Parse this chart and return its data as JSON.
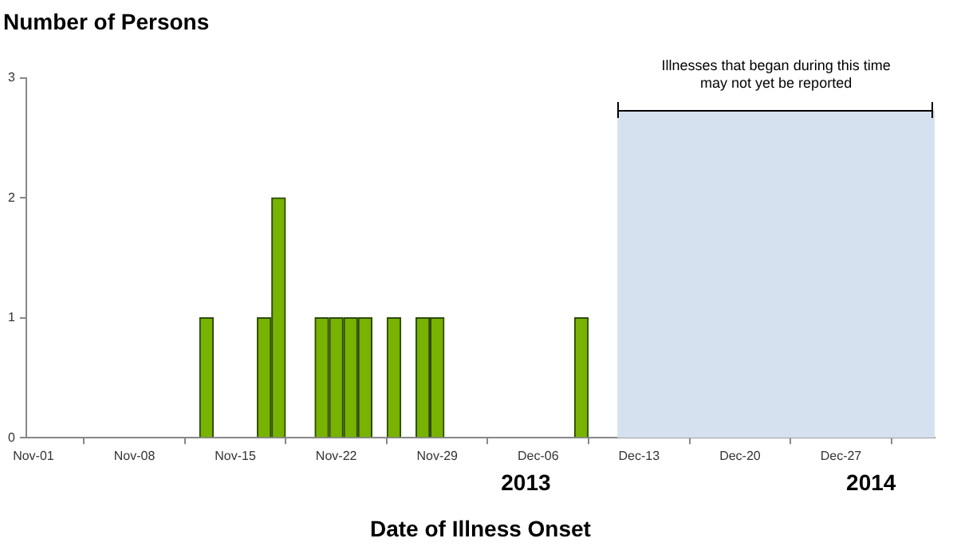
{
  "chart_data": {
    "type": "bar",
    "title": "Number of Persons",
    "xlabel": "Date of Illness Onset",
    "x": [
      "2013-11-13",
      "2013-11-17",
      "2013-11-18",
      "2013-11-21",
      "2013-11-22",
      "2013-11-23",
      "2013-11-24",
      "2013-11-26",
      "2013-11-28",
      "2013-11-29",
      "2013-12-09"
    ],
    "values": [
      1,
      1,
      2,
      1,
      1,
      1,
      1,
      1,
      1,
      1,
      1
    ],
    "color": "#77b300",
    "xlim": [
      "2013-10-31T12:00",
      "2014-01-02T12:00"
    ],
    "xticks": [
      {
        "value": "2013-11-01",
        "label": "Nov-01"
      },
      {
        "value": "2013-11-08",
        "label": "Nov-08"
      },
      {
        "value": "2013-11-15",
        "label": "Nov-15"
      },
      {
        "value": "2013-11-22",
        "label": "Nov-22"
      },
      {
        "value": "2013-11-29",
        "label": "Nov-29"
      },
      {
        "value": "2013-12-06",
        "label": "Dec-06"
      },
      {
        "value": "2013-12-13",
        "label": "Dec-13"
      },
      {
        "value": "2013-12-20",
        "label": "Dec-20"
      },
      {
        "value": "2013-12-27",
        "label": "Dec-27"
      }
    ],
    "ylim": [
      0,
      3
    ],
    "yticks": [
      0,
      1,
      2,
      3
    ],
    "grid": false,
    "legend": false,
    "bands": [
      {
        "axis": "x",
        "from": "2013-12-11T12:00",
        "to": "2014-01-02T12:00",
        "label": "Illnesses that began during this time may not yet be reported",
        "color": "#d5e1ee"
      }
    ],
    "annotations": [
      "2013",
      "2014"
    ]
  }
}
